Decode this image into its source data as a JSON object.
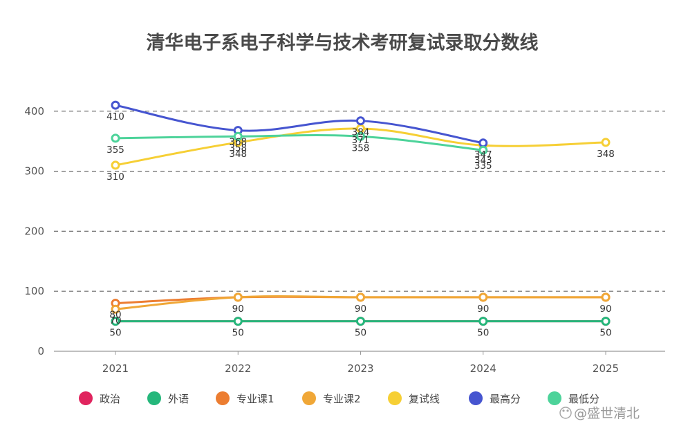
{
  "chart_data": {
    "type": "line",
    "title": "清华电子系电子科学与技术考研复试录取分数线",
    "x": [
      "2021",
      "2022",
      "2023",
      "2024",
      "2025"
    ],
    "ylim": [
      0,
      400
    ],
    "yticks": [
      0,
      100,
      200,
      300,
      400
    ],
    "grid": true,
    "legend_position": "bottom",
    "series": [
      {
        "name": "政治",
        "color": "#e0245e",
        "values": [
          50,
          50,
          50,
          50,
          50
        ]
      },
      {
        "name": "外语",
        "color": "#25b77b",
        "values": [
          50,
          50,
          50,
          50,
          50
        ]
      },
      {
        "name": "专业课1",
        "color": "#ec7d31",
        "values": [
          80,
          90,
          90,
          90,
          90
        ]
      },
      {
        "name": "专业课2",
        "color": "#f0a737",
        "values": [
          70,
          90,
          90,
          90,
          90
        ]
      },
      {
        "name": "复试线",
        "color": "#f6cf35",
        "values": [
          310,
          348,
          371,
          343,
          348
        ]
      },
      {
        "name": "最高分",
        "color": "#4655d0",
        "values": [
          410,
          368,
          384,
          347,
          null
        ]
      },
      {
        "name": "最低分",
        "color": "#4dd39a",
        "values": [
          355,
          358,
          358,
          335,
          null
        ]
      }
    ],
    "data_labels": [
      {
        "x": "2021",
        "text": "410"
      },
      {
        "x": "2021",
        "text": "355"
      },
      {
        "x": "2021",
        "text": "310"
      },
      {
        "x": "2021",
        "text": "80"
      },
      {
        "x": "2021",
        "text": "70"
      },
      {
        "x": "2021",
        "text": "50"
      },
      {
        "x": "2022",
        "text": "368"
      },
      {
        "x": "2022",
        "text": "358"
      },
      {
        "x": "2022",
        "text": "348"
      },
      {
        "x": "2022",
        "text": "90"
      },
      {
        "x": "2022",
        "text": "50"
      },
      {
        "x": "2023",
        "text": "384"
      },
      {
        "x": "2023",
        "text": "371"
      },
      {
        "x": "2023",
        "text": "358"
      },
      {
        "x": "2023",
        "text": "90"
      },
      {
        "x": "2023",
        "text": "50"
      },
      {
        "x": "2024",
        "text": "347"
      },
      {
        "x": "2024",
        "text": "343"
      },
      {
        "x": "2024",
        "text": "335"
      },
      {
        "x": "2024",
        "text": "90"
      },
      {
        "x": "2024",
        "text": "50"
      },
      {
        "x": "2025",
        "text": "348"
      },
      {
        "x": "2025",
        "text": "90"
      },
      {
        "x": "2025",
        "text": "50"
      }
    ]
  },
  "watermark": "@盛世清北"
}
